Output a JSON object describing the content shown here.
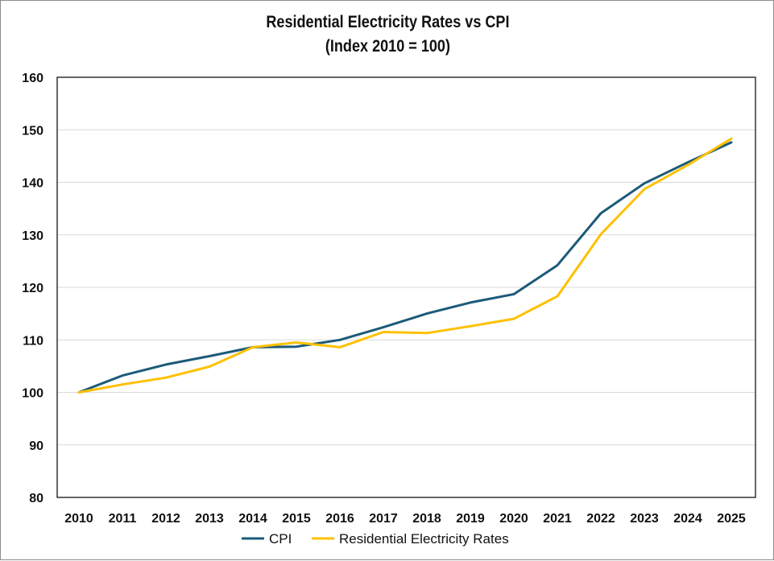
{
  "chart_data": {
    "type": "line",
    "title": "Residential Electricity Rates vs CPI",
    "subtitle": "(Index 2010 = 100)",
    "x": [
      "2010",
      "2011",
      "2012",
      "2013",
      "2014",
      "2015",
      "2016",
      "2017",
      "2018",
      "2019",
      "2020",
      "2021",
      "2022",
      "2023",
      "2024",
      "2025"
    ],
    "ylim": [
      80,
      160
    ],
    "yticks": [
      80,
      90,
      100,
      110,
      120,
      130,
      140,
      150,
      160
    ],
    "grid": true,
    "legend_position": "bottom",
    "series": [
      {
        "name": "CPI",
        "color": "#1c5a78",
        "values": [
          100.0,
          103.2,
          105.3,
          106.9,
          108.6,
          108.7,
          110.0,
          112.4,
          115.0,
          117.1,
          118.7,
          124.2,
          134.1,
          139.8,
          143.8,
          147.6
        ]
      },
      {
        "name": "Residential Electricity Rates",
        "color": "#ffc000",
        "values": [
          100.0,
          101.5,
          102.8,
          104.9,
          108.6,
          109.5,
          108.6,
          111.5,
          111.3,
          112.6,
          114.0,
          118.3,
          130.1,
          138.7,
          143.3,
          148.3
        ]
      }
    ]
  }
}
